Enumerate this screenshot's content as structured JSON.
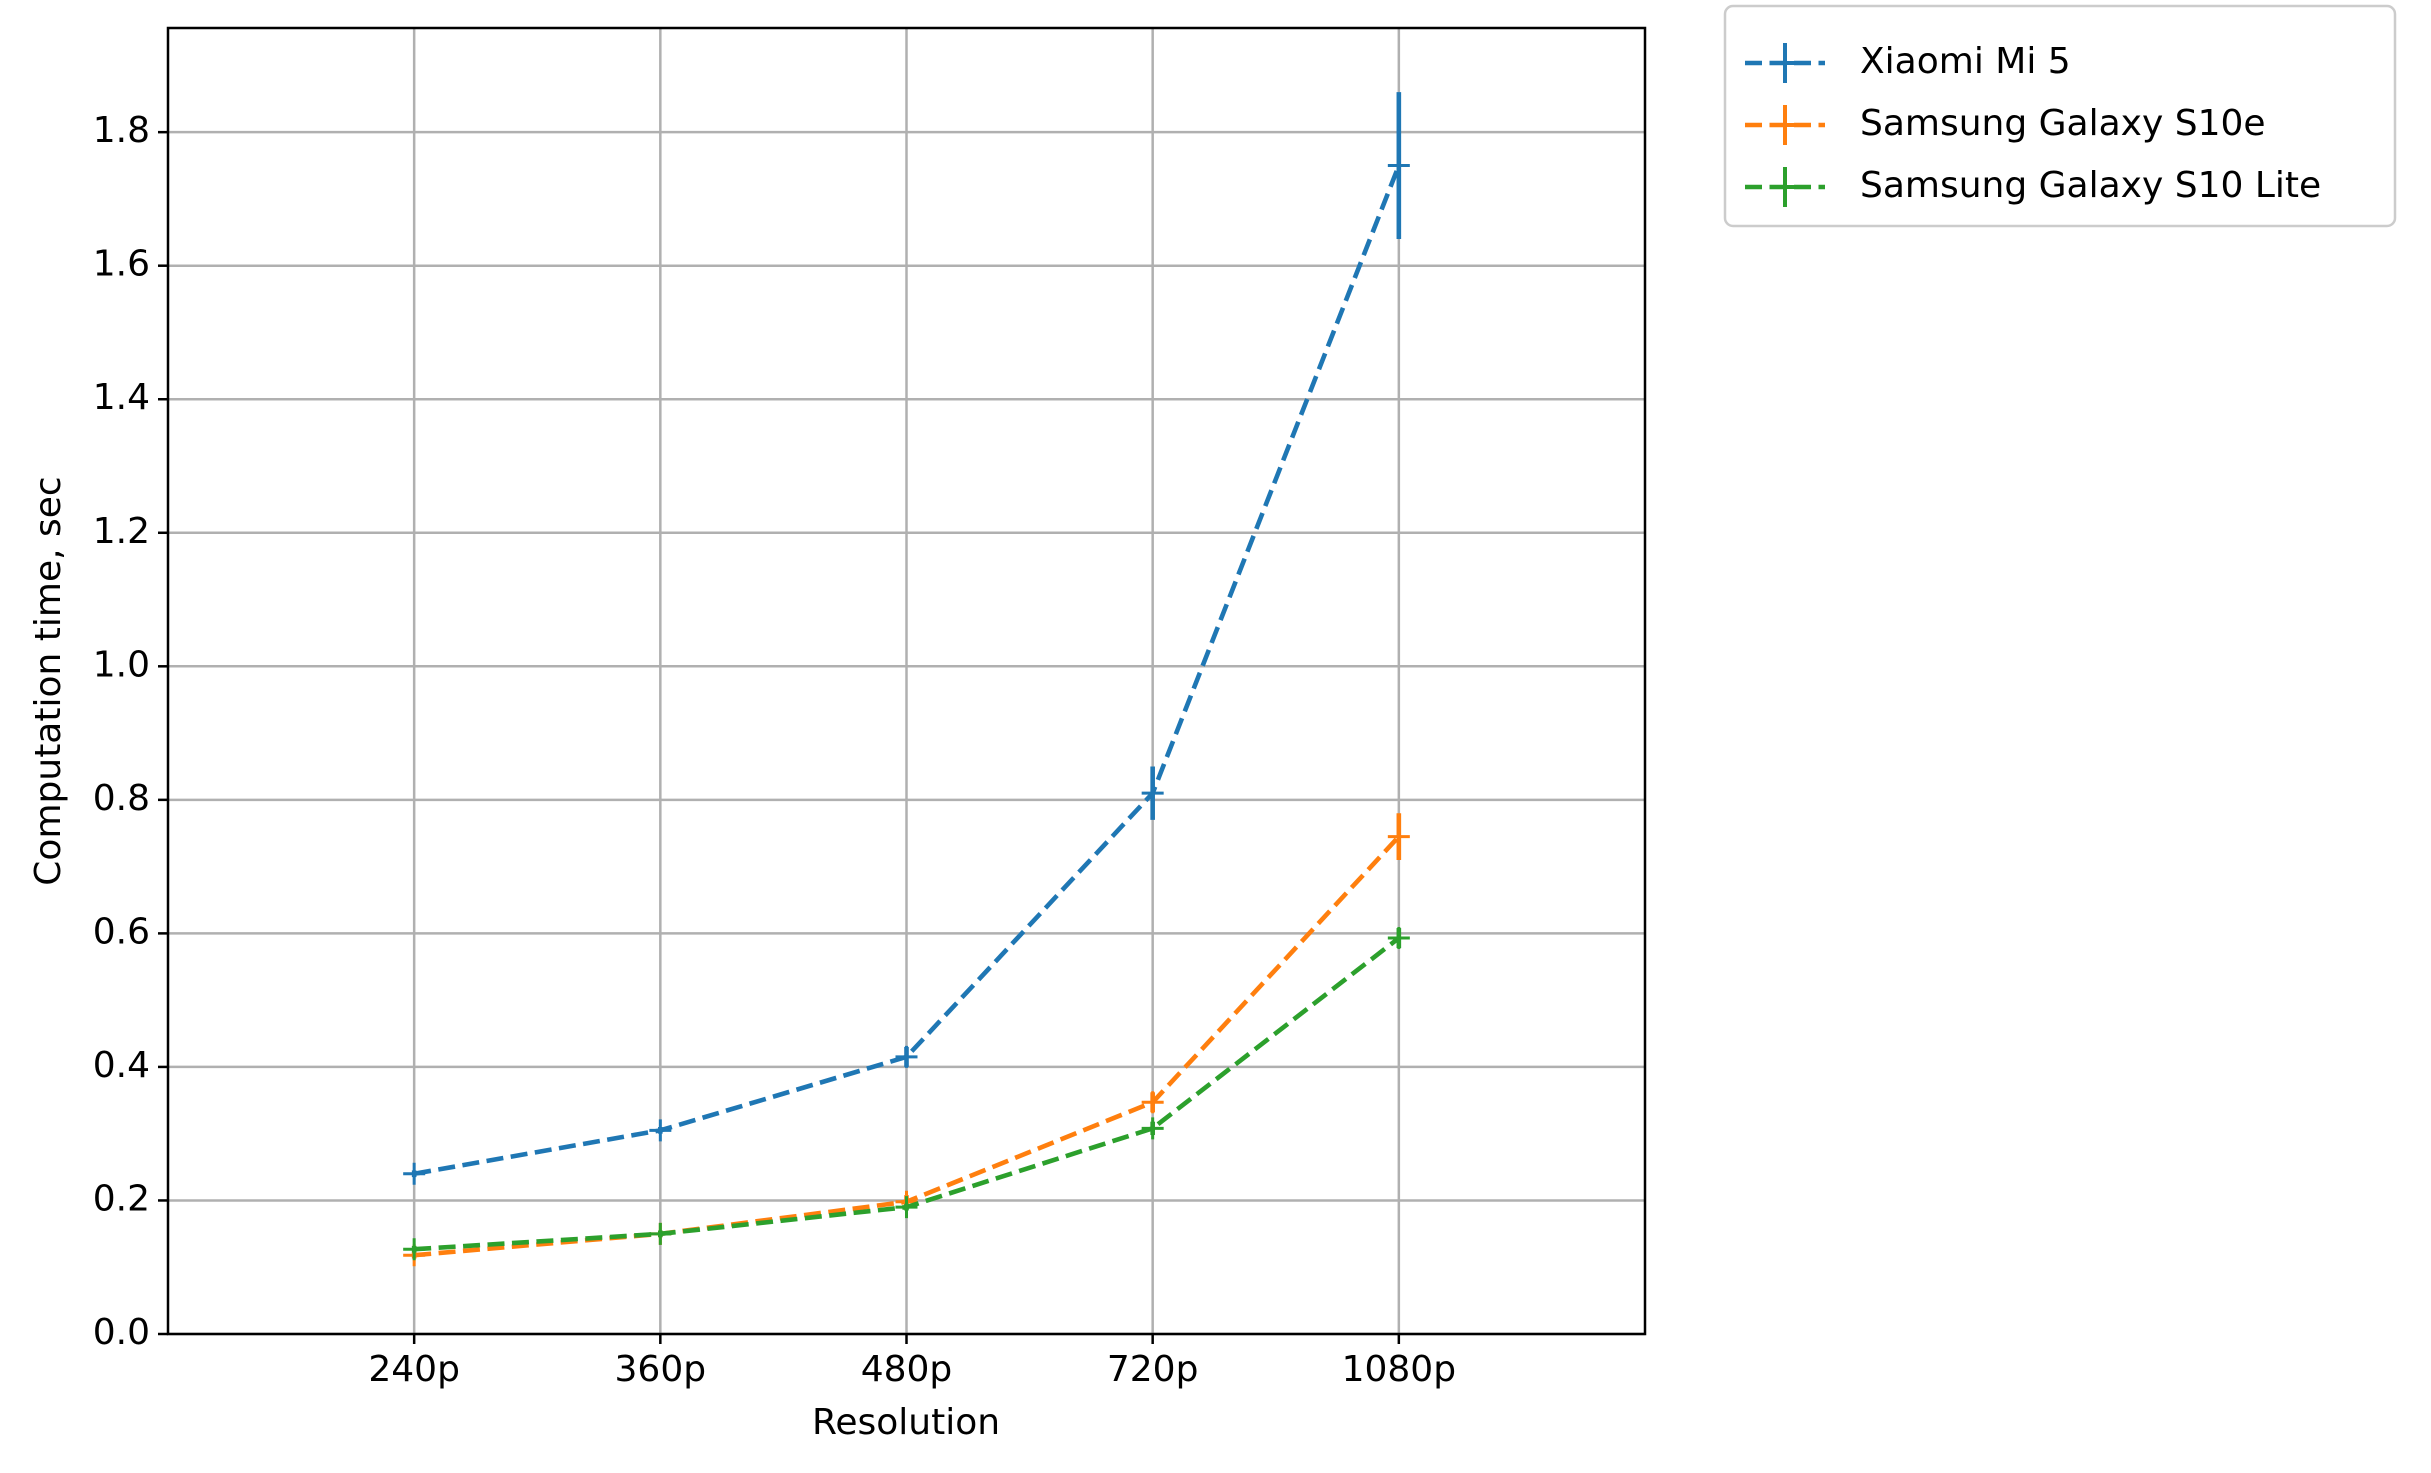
{
  "chart_data": {
    "type": "line",
    "x_label": "Resolution",
    "y_label": "Computation time, sec",
    "categories": [
      "240p",
      "360p",
      "480p",
      "720p",
      "1080p"
    ],
    "series": [
      {
        "name": "Xiaomi Mi 5",
        "color": "#1f77b4",
        "values": [
          0.24,
          0.305,
          0.415,
          0.81,
          1.75
        ],
        "errors": [
          0.005,
          0.005,
          0.015,
          0.04,
          0.11
        ]
      },
      {
        "name": "Samsung Galaxy S10e",
        "color": "#ff7f0e",
        "values": [
          0.118,
          0.15,
          0.198,
          0.347,
          0.745
        ],
        "errors": [
          0.005,
          0.005,
          0.01,
          0.015,
          0.035
        ]
      },
      {
        "name": "Samsung Galaxy S10 Lite",
        "color": "#2ca02c",
        "values": [
          0.127,
          0.15,
          0.19,
          0.308,
          0.593
        ],
        "errors": [
          0.005,
          0.005,
          0.005,
          0.01,
          0.015
        ]
      }
    ],
    "ylim": [
      0,
      1.956
    ],
    "yticks": [
      {
        "value": 0,
        "label": "0.0"
      },
      0.2,
      0.4,
      0.6,
      0.8,
      {
        "value": 1,
        "label": "1.0"
      },
      1.2,
      1.4,
      1.6,
      1.8
    ],
    "grid": true,
    "legend": "outside-upper-right"
  }
}
